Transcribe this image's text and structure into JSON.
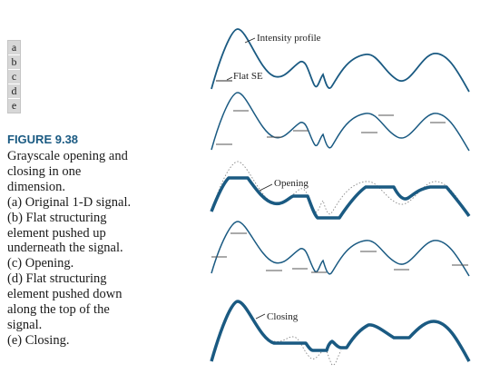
{
  "panel_letters": [
    "a",
    "b",
    "c",
    "d",
    "e"
  ],
  "figure": {
    "label": "FIGURE 9.38",
    "caption_lines": [
      "Grayscale opening and",
      "closing in one",
      "dimension.",
      "(a) Original 1-D signal.",
      "(b) Flat structuring",
      "element pushed up",
      "underneath the signal.",
      "(c) Opening.",
      "(d) Flat structuring",
      "element pushed down",
      "along the top of the",
      "signal.",
      "(e) Closing."
    ]
  },
  "annotations": {
    "intensity_profile": "Intensity profile",
    "flat_se": "Flat SE",
    "opening": "Opening",
    "closing": "Closing"
  },
  "colors": {
    "accent": "#1a5a82",
    "signal": "#1a5a82",
    "reference_signal": "#888888",
    "structuring_element": "#555555"
  }
}
